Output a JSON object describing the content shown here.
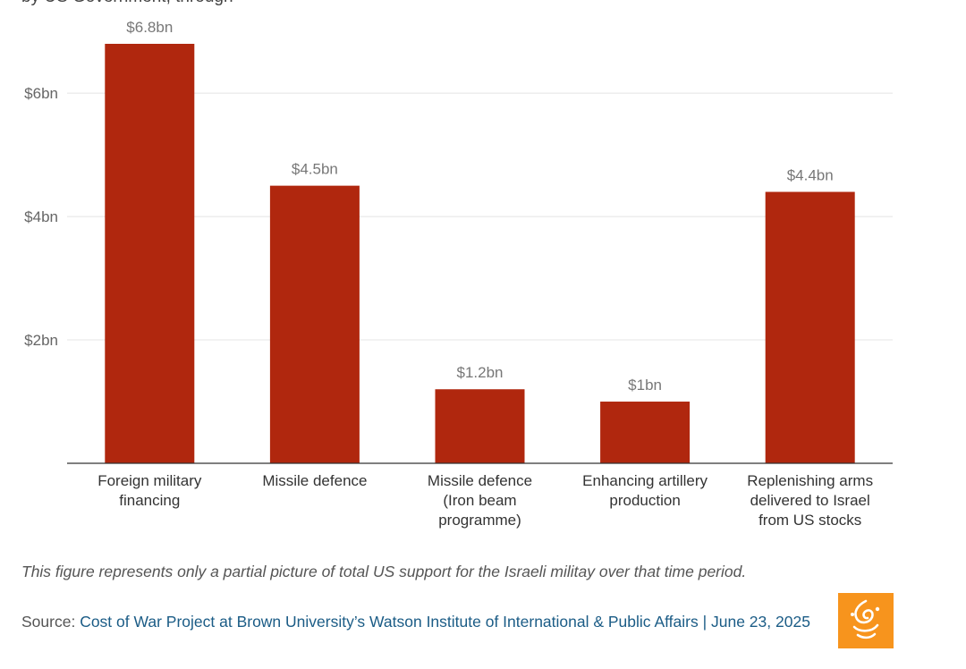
{
  "header": {
    "title_fragment": "by US Government, through"
  },
  "chart_data": {
    "type": "bar",
    "categories": [
      [
        "Foreign military",
        "financing"
      ],
      [
        "Missile defence"
      ],
      [
        "Missile defence",
        "(Iron beam",
        "programme)"
      ],
      [
        "Enhancing artillery",
        "production"
      ],
      [
        "Replenishing arms",
        "delivered to Israel",
        "from US stocks"
      ]
    ],
    "values": [
      6.8,
      4.5,
      1.2,
      1,
      4.4
    ],
    "data_labels": [
      "$6.8bn",
      "$4.5bn",
      "$1.2bn",
      "$1bn",
      "$4.4bn"
    ],
    "yticks": [
      2,
      4,
      6
    ],
    "ytick_labels": [
      "$2bn",
      "$4bn",
      "$6bn"
    ],
    "ylim": [
      0,
      6.8
    ],
    "xlabel": "",
    "ylabel": "",
    "bar_color": "#b0270e",
    "grid": true
  },
  "footer": {
    "note": "This figure represents only a partial picture of total US support for the Israeli militay over that time period.",
    "source_prefix": "Source: ",
    "source_link": "Cost of War Project at Brown University’s Watson Institute of International & Public Affairs | June 23, 2025",
    "logo_icon": "al-jazeera-logo-icon",
    "logo_color": "#f7941d"
  }
}
